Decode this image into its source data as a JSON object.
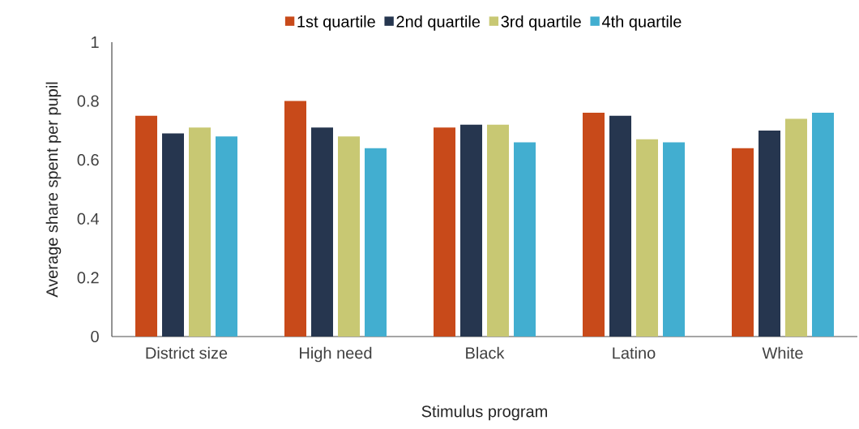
{
  "chart_data": {
    "type": "bar",
    "xlabel": "Stimulus program",
    "ylabel": "Average share spent per pupil",
    "categories": [
      "District size",
      "High need",
      "Black",
      "Latino",
      "White"
    ],
    "series": [
      {
        "name": "1st quartile",
        "color": "#c84a1a",
        "values": [
          0.75,
          0.8,
          0.71,
          0.76,
          0.64
        ]
      },
      {
        "name": "2nd quartile",
        "color": "#26364f",
        "values": [
          0.69,
          0.71,
          0.72,
          0.75,
          0.7
        ]
      },
      {
        "name": "3rd quartile",
        "color": "#c8c873",
        "values": [
          0.71,
          0.68,
          0.72,
          0.67,
          0.74
        ]
      },
      {
        "name": "4th quartile",
        "color": "#42aed0",
        "values": [
          0.68,
          0.64,
          0.66,
          0.66,
          0.76
        ]
      }
    ],
    "ylim": [
      0,
      1
    ],
    "yticks": [
      0,
      0.2,
      0.4,
      0.6,
      0.8,
      1
    ],
    "grid": false,
    "legend": "top"
  }
}
